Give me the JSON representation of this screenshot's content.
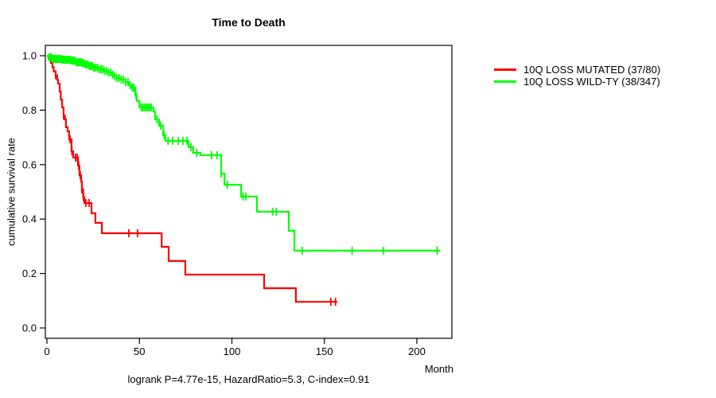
{
  "chart_data": {
    "type": "line",
    "subtype": "kaplan-meier-step",
    "title": "Time to Death",
    "xlabel": "Month",
    "ylabel": "cumulative survival rate",
    "annotation": "logrank P=4.77e-15, HazardRatio=5.3, C-index=0.91",
    "xlim": [
      0,
      220
    ],
    "ylim": [
      0,
      1
    ],
    "x_ticks": [
      0,
      50,
      100,
      150,
      200
    ],
    "x_tick_labels": [
      "0",
      "50",
      "100",
      "150",
      "200"
    ],
    "y_ticks": [
      0.0,
      0.2,
      0.4,
      0.6,
      0.8,
      1.0
    ],
    "y_tick_labels": [
      "0.0",
      "0.2",
      "0.4",
      "0.6",
      "0.8",
      "1.0"
    ],
    "grid": false,
    "legend_position": "right-outside",
    "series": [
      {
        "name": "10Q LOSS MUTATED (37/80)",
        "color": "#ff0000",
        "end_month": 157,
        "steps": [
          [
            0,
            1.0
          ],
          [
            0.9,
            0.991
          ],
          [
            1.3,
            0.985
          ],
          [
            2.2,
            0.973
          ],
          [
            3.0,
            0.958
          ],
          [
            3.6,
            0.943
          ],
          [
            4.7,
            0.928
          ],
          [
            5.5,
            0.912
          ],
          [
            6.0,
            0.897
          ],
          [
            6.9,
            0.868
          ],
          [
            7.5,
            0.839
          ],
          [
            8.2,
            0.81
          ],
          [
            9.0,
            0.78
          ],
          [
            9.7,
            0.766
          ],
          [
            10.3,
            0.737
          ],
          [
            11.2,
            0.722
          ],
          [
            12.0,
            0.693
          ],
          [
            13.3,
            0.649
          ],
          [
            14.2,
            0.626
          ],
          [
            16.8,
            0.596
          ],
          [
            17.6,
            0.561
          ],
          [
            18.5,
            0.538
          ],
          [
            18.9,
            0.509
          ],
          [
            19.6,
            0.48
          ],
          [
            20.2,
            0.459
          ],
          [
            24.1,
            0.421
          ],
          [
            26.2,
            0.386
          ],
          [
            29.7,
            0.348
          ],
          [
            62.0,
            0.298
          ],
          [
            65.8,
            0.246
          ],
          [
            74.8,
            0.196
          ],
          [
            117.4,
            0.146
          ],
          [
            134.6,
            0.096
          ]
        ],
        "censor_months": [
          4.7,
          9.0,
          12.5,
          13.5,
          15.5,
          16.4,
          17.2,
          18.0,
          18.9,
          19.8,
          21.0,
          22.8,
          44.3,
          49.0,
          153.5,
          156.0
        ]
      },
      {
        "name": "10Q LOSS WILD-TY (38/347)",
        "color": "#00ff00",
        "end_month": 212.5,
        "steps": [
          [
            0,
            1.0
          ],
          [
            0.7,
            0.994
          ],
          [
            2.5,
            0.988
          ],
          [
            8.0,
            0.985
          ],
          [
            13.0,
            0.982
          ],
          [
            15.5,
            0.976
          ],
          [
            19.0,
            0.973
          ],
          [
            20.6,
            0.968
          ],
          [
            23.0,
            0.962
          ],
          [
            25.4,
            0.956
          ],
          [
            28.0,
            0.95
          ],
          [
            30.5,
            0.944
          ],
          [
            33.0,
            0.938
          ],
          [
            34.8,
            0.93
          ],
          [
            36.5,
            0.924
          ],
          [
            37.8,
            0.918
          ],
          [
            40.0,
            0.912
          ],
          [
            42.6,
            0.903
          ],
          [
            44.3,
            0.891
          ],
          [
            45.6,
            0.883
          ],
          [
            47.7,
            0.854
          ],
          [
            48.6,
            0.834
          ],
          [
            50.0,
            0.81
          ],
          [
            57.6,
            0.795
          ],
          [
            58.5,
            0.766
          ],
          [
            60.6,
            0.743
          ],
          [
            62.8,
            0.708
          ],
          [
            64.0,
            0.687
          ],
          [
            76.6,
            0.664
          ],
          [
            79.0,
            0.643
          ],
          [
            83.0,
            0.635
          ],
          [
            94.2,
            0.567
          ],
          [
            96.0,
            0.526
          ],
          [
            105.0,
            0.483
          ],
          [
            113.5,
            0.427
          ],
          [
            130.7,
            0.357
          ],
          [
            133.8,
            0.284
          ]
        ],
        "censor_months": [
          1.2,
          1.8,
          2.4,
          3.0,
          3.6,
          4.2,
          4.8,
          5.4,
          6.0,
          6.6,
          7.2,
          7.8,
          8.4,
          9.0,
          9.6,
          10.2,
          10.8,
          11.4,
          12.0,
          12.6,
          13.2,
          13.9,
          14.5,
          15.1,
          15.8,
          16.4,
          17.1,
          17.8,
          18.5,
          19.2,
          19.9,
          20.7,
          21.4,
          22.2,
          23.0,
          23.8,
          24.6,
          25.4,
          26.3,
          27.2,
          28.2,
          29.2,
          30.2,
          31.2,
          32.3,
          33.4,
          34.5,
          35.6,
          36.7,
          37.8,
          39.0,
          40.2,
          41.4,
          42.6,
          43.8,
          45.0,
          46.2,
          46.9,
          48.2,
          51.0,
          51.9,
          52.8,
          53.7,
          54.6,
          55.5,
          56.4,
          59.5,
          61.5,
          63.4,
          65.5,
          68.0,
          71.0,
          73.5,
          75.7,
          77.8,
          81.0,
          89.0,
          92.0,
          94.2,
          97.5,
          106.0,
          107.5,
          122.0,
          124.0,
          138.0,
          165.0,
          182.0,
          211.0
        ]
      }
    ]
  }
}
